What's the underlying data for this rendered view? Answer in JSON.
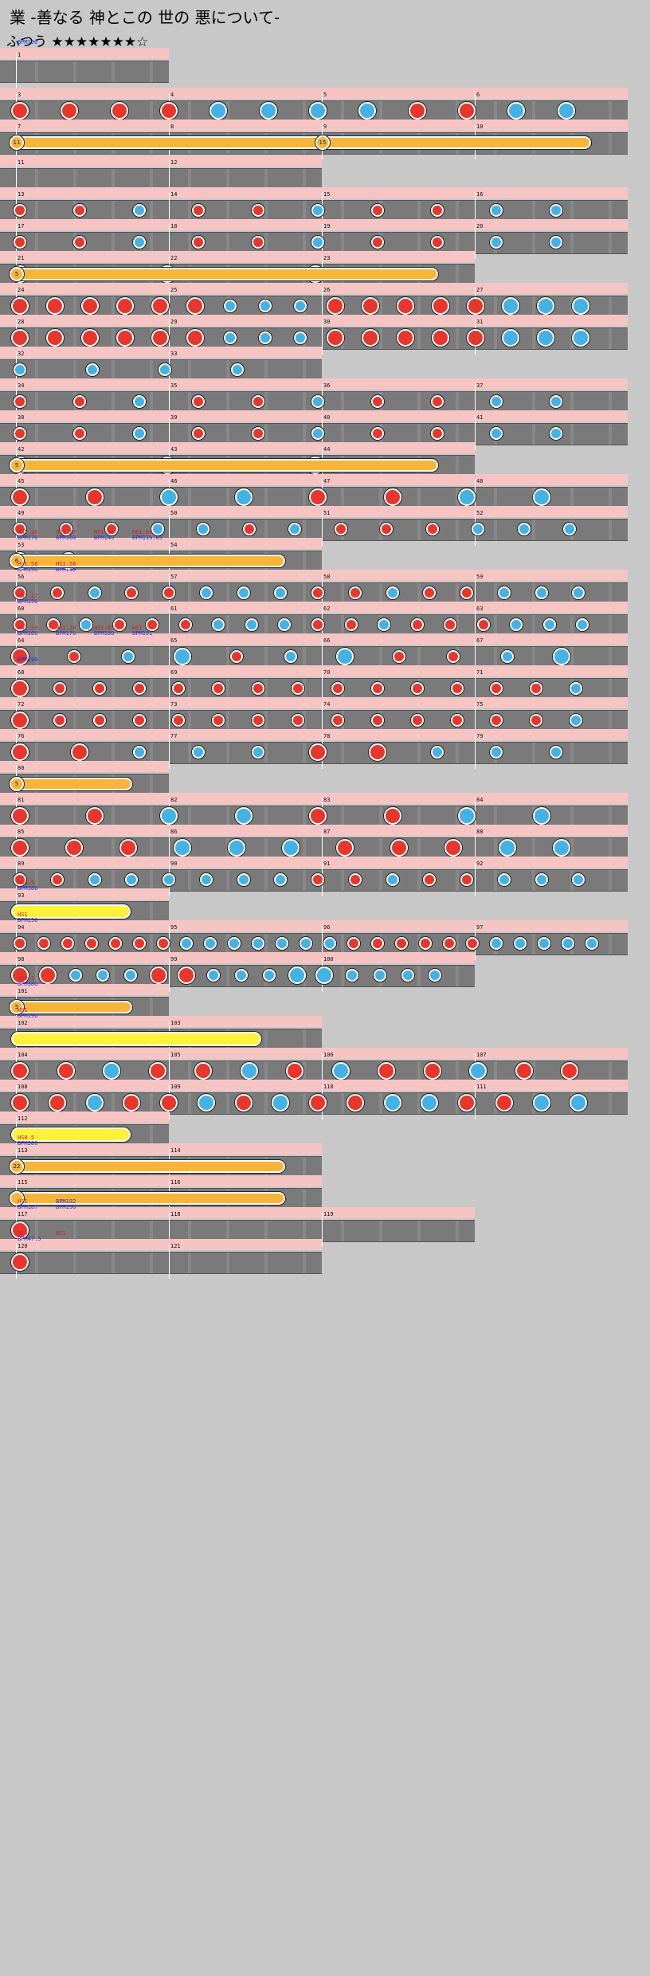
{
  "header": {
    "title": "業 -善なる 神とこの 世の 悪について-",
    "difficulty": "ふつう ★★★★★★★☆"
  },
  "rows": [
    {
      "measures": [
        {
          "num": "1"
        }
      ],
      "tags": [
        {
          "kind": "bpm",
          "text": "BPM190"
        }
      ],
      "notes": []
    },
    {
      "measures": [
        {
          "num": "3"
        },
        {
          "num": "4"
        },
        {
          "num": "5"
        },
        {
          "num": "6"
        }
      ],
      "tags": [],
      "notes": [
        "D",
        "D",
        "D",
        "D",
        "K",
        "K",
        "K",
        "K",
        "D",
        "D",
        "K",
        "K"
      ]
    },
    {
      "measures": [
        {
          "num": "7"
        },
        {
          "num": "8"
        },
        {
          "num": "9"
        },
        {
          "num": "10"
        }
      ],
      "tags": [],
      "rolls": [
        {
          "label": "11"
        },
        {
          "label": "15"
        }
      ],
      "notes": []
    },
    {
      "measures": [
        {
          "num": "11"
        },
        {
          "num": "12"
        }
      ],
      "tags": [],
      "notes": []
    },
    {
      "measures": [
        {
          "num": "13"
        },
        {
          "num": "14"
        },
        {
          "num": "15"
        },
        {
          "num": "16"
        }
      ],
      "tags": [],
      "notes": [
        "d",
        "d",
        "k",
        "d",
        "d",
        "k",
        "d",
        "d",
        "k",
        "k"
      ]
    },
    {
      "measures": [
        {
          "num": "17"
        },
        {
          "num": "18"
        },
        {
          "num": "19"
        },
        {
          "num": "20"
        }
      ],
      "tags": [],
      "notes": [
        "d",
        "d",
        "k",
        "d",
        "d",
        "k",
        "d",
        "d",
        "k",
        "k"
      ]
    },
    {
      "measures": [
        {
          "num": "21"
        },
        {
          "num": "22"
        },
        {
          "num": "23"
        }
      ],
      "tags": [],
      "rolls": [
        {
          "label": "5"
        }
      ],
      "notes": [
        "D",
        "K",
        "K"
      ]
    },
    {
      "measures": [
        {
          "num": "24"
        },
        {
          "num": "25"
        },
        {
          "num": "26"
        },
        {
          "num": "27"
        }
      ],
      "tags": [],
      "notes": [
        "D",
        "D",
        "D",
        "D",
        "D",
        "D",
        "k",
        "k",
        "k",
        "D",
        "D",
        "D",
        "D",
        "D",
        "K",
        "K",
        "K"
      ]
    },
    {
      "measures": [
        {
          "num": "28"
        },
        {
          "num": "29"
        },
        {
          "num": "30"
        },
        {
          "num": "31"
        }
      ],
      "tags": [],
      "notes": [
        "D",
        "D",
        "D",
        "D",
        "D",
        "D",
        "k",
        "k",
        "k",
        "D",
        "D",
        "D",
        "D",
        "D",
        "K",
        "K",
        "K"
      ]
    },
    {
      "measures": [
        {
          "num": "32"
        },
        {
          "num": "33"
        }
      ],
      "tags": [],
      "notes": [
        "k",
        "k",
        "k",
        "k"
      ]
    },
    {
      "measures": [
        {
          "num": "34"
        },
        {
          "num": "35"
        },
        {
          "num": "36"
        },
        {
          "num": "37"
        }
      ],
      "tags": [],
      "notes": [
        "d",
        "d",
        "k",
        "d",
        "d",
        "k",
        "d",
        "d",
        "k",
        "k"
      ]
    },
    {
      "measures": [
        {
          "num": "38"
        },
        {
          "num": "39"
        },
        {
          "num": "40"
        },
        {
          "num": "41"
        }
      ],
      "tags": [],
      "notes": [
        "d",
        "d",
        "k",
        "d",
        "d",
        "k",
        "d",
        "d",
        "k",
        "k"
      ]
    },
    {
      "measures": [
        {
          "num": "42"
        },
        {
          "num": "43"
        },
        {
          "num": "44"
        }
      ],
      "tags": [],
      "rolls": [
        {
          "label": "5"
        }
      ],
      "notes": [
        "D",
        "K",
        "K"
      ]
    },
    {
      "measures": [
        {
          "num": "45"
        },
        {
          "num": "46"
        },
        {
          "num": "47"
        },
        {
          "num": "48"
        }
      ],
      "tags": [],
      "notes": [
        "D",
        "D",
        "K",
        "K",
        "D",
        "D",
        "K",
        "K"
      ]
    },
    {
      "measures": [
        {
          "num": "49"
        },
        {
          "num": "50"
        },
        {
          "num": "51"
        },
        {
          "num": "52"
        }
      ],
      "tags": [],
      "notes": [
        "d",
        "d",
        "d",
        "k",
        "k",
        "d",
        "k",
        "d",
        "d",
        "d",
        "k",
        "k",
        "k"
      ]
    },
    {
      "measures": [
        {
          "num": "53"
        },
        {
          "num": "54"
        }
      ],
      "tags": [
        {
          "kind": "hs",
          "text": "HS1.18"
        },
        {
          "kind": "bpm",
          "text": "BPM170"
        },
        {
          "kind": "hs",
          "text": "HS1.27"
        },
        {
          "kind": "bpm",
          "text": "BPM160"
        },
        {
          "kind": "hs",
          "text": "HS1.36"
        },
        {
          "kind": "bpm",
          "text": "BPM140"
        },
        {
          "kind": "hs",
          "text": "HS1.98"
        },
        {
          "kind": "bpm",
          "text": "BPM119.85"
        }
      ],
      "rolls": [
        {
          "label": "6"
        }
      ],
      "notes": [
        "D",
        "D",
        "k",
        "k",
        "k",
        "k"
      ]
    },
    {
      "measures": [
        {
          "num": "56"
        },
        {
          "num": "57"
        },
        {
          "num": "58"
        },
        {
          "num": "59"
        }
      ],
      "tags": [
        {
          "kind": "hs",
          "text": "HS1.58"
        },
        {
          "kind": "bpm",
          "text": "BPM150"
        },
        {
          "kind": "hs",
          "text": "HS1.58"
        },
        {
          "kind": "bpm",
          "text": "BPM140"
        }
      ],
      "notes": [
        "d",
        "d",
        "k",
        "d",
        "d",
        "k",
        "k",
        "k",
        "d",
        "d",
        "k",
        "d",
        "d",
        "k",
        "k",
        "k"
      ]
    },
    {
      "measures": [
        {
          "num": "60"
        },
        {
          "num": "61"
        },
        {
          "num": "62"
        },
        {
          "num": "63"
        }
      ],
      "tags": [
        {
          "kind": "hs",
          "text": "HS1.27"
        },
        {
          "kind": "bpm",
          "text": "BPM150"
        }
      ],
      "notes": [
        "d",
        "d",
        "k",
        "d",
        "d",
        "d",
        "k",
        "k",
        "k",
        "d",
        "d",
        "k",
        "d",
        "d",
        "d",
        "k",
        "k",
        "k"
      ]
    },
    {
      "measures": [
        {
          "num": "64"
        },
        {
          "num": "65"
        },
        {
          "num": "66"
        },
        {
          "num": "67"
        }
      ],
      "tags": [
        {
          "kind": "hs",
          "text": "HS1.19"
        },
        {
          "kind": "bpm",
          "text": "BPM160"
        },
        {
          "kind": "hs",
          "text": "HS1.18"
        },
        {
          "kind": "bpm",
          "text": "BPM170"
        },
        {
          "kind": "hs",
          "text": "HS1.05"
        },
        {
          "kind": "bpm",
          "text": "BPM180"
        },
        {
          "kind": "hs",
          "text": "HS1"
        },
        {
          "kind": "bpm",
          "text": "BPM191"
        }
      ],
      "notes": [
        "D",
        "d",
        "k",
        "K",
        "d",
        "k",
        "K",
        "d",
        "d",
        "k",
        "K"
      ]
    },
    {
      "measures": [
        {
          "num": "68"
        },
        {
          "num": "69"
        },
        {
          "num": "70"
        },
        {
          "num": "71"
        }
      ],
      "tags": [
        {
          "kind": "bpm",
          "text": "BPM190"
        }
      ],
      "notes": [
        "D",
        "d",
        "d",
        "d",
        "d",
        "d",
        "d",
        "d",
        "d",
        "d",
        "d",
        "d",
        "d",
        "d",
        "k"
      ]
    },
    {
      "measures": [
        {
          "num": "72"
        },
        {
          "num": "73"
        },
        {
          "num": "74"
        },
        {
          "num": "75"
        }
      ],
      "tags": [],
      "notes": [
        "D",
        "d",
        "d",
        "d",
        "d",
        "d",
        "d",
        "d",
        "d",
        "d",
        "d",
        "d",
        "d",
        "d",
        "k"
      ]
    },
    {
      "measures": [
        {
          "num": "76"
        },
        {
          "num": "77"
        },
        {
          "num": "78"
        },
        {
          "num": "79"
        }
      ],
      "tags": [],
      "notes": [
        "D",
        "D",
        "k",
        "k",
        "k",
        "D",
        "D",
        "k",
        "k",
        "k"
      ]
    },
    {
      "measures": [
        {
          "num": "80"
        }
      ],
      "tags": [],
      "rolls": [
        {
          "label": "5"
        }
      ],
      "notes": []
    },
    {
      "measures": [
        {
          "num": "81"
        },
        {
          "num": "82"
        },
        {
          "num": "83"
        },
        {
          "num": "84"
        }
      ],
      "tags": [],
      "notes": [
        "D",
        "D",
        "K",
        "K",
        "D",
        "D",
        "K",
        "K"
      ]
    },
    {
      "measures": [
        {
          "num": "85"
        },
        {
          "num": "86"
        },
        {
          "num": "87"
        },
        {
          "num": "88"
        }
      ],
      "tags": [],
      "notes": [
        "D",
        "D",
        "D",
        "K",
        "K",
        "K",
        "D",
        "D",
        "D",
        "K",
        "K"
      ]
    },
    {
      "measures": [
        {
          "num": "89"
        },
        {
          "num": "90"
        },
        {
          "num": "91"
        },
        {
          "num": "92"
        }
      ],
      "tags": [],
      "notes": [
        "d",
        "d",
        "k",
        "k",
        "k",
        "k",
        "k",
        "k",
        "d",
        "d",
        "k",
        "d",
        "d",
        "k",
        "k",
        "k"
      ]
    },
    {
      "measures": [
        {
          "num": "93"
        }
      ],
      "tags": [
        {
          "kind": "hs",
          "text": "HS0.5"
        },
        {
          "kind": "bpm",
          "text": "BPM380"
        }
      ],
      "balloons": [
        {
          "label": ""
        }
      ],
      "notes": []
    },
    {
      "measures": [
        {
          "num": "94"
        },
        {
          "num": "95"
        },
        {
          "num": "96"
        },
        {
          "num": "97"
        }
      ],
      "tags": [
        {
          "kind": "hs",
          "text": "HS1"
        },
        {
          "kind": "bpm",
          "text": "BPM190"
        }
      ],
      "notes": [
        "d",
        "d",
        "d",
        "d",
        "d",
        "d",
        "d",
        "k",
        "k",
        "k",
        "k",
        "k",
        "k",
        "k",
        "d",
        "d",
        "d",
        "d",
        "d",
        "d",
        "k",
        "k",
        "k",
        "k",
        "k"
      ]
    },
    {
      "measures": [
        {
          "num": "98"
        },
        {
          "num": "99"
        },
        {
          "num": "100"
        }
      ],
      "tags": [],
      "notes": [
        "D",
        "D",
        "k",
        "k",
        "k",
        "D",
        "D",
        "k",
        "k",
        "k",
        "K",
        "K",
        "k",
        "k",
        "k",
        "k"
      ]
    },
    {
      "measures": [
        {
          "num": "101"
        }
      ],
      "tags": [
        {
          "kind": "hs",
          "text": "HS0.5"
        },
        {
          "kind": "bpm",
          "text": "BPM380"
        }
      ],
      "rolls": [
        {
          "label": "5"
        }
      ],
      "notes": []
    },
    {
      "measures": [
        {
          "num": "102"
        },
        {
          "num": "103"
        }
      ],
      "tags": [
        {
          "kind": "hs",
          "text": "HS1"
        },
        {
          "kind": "bpm",
          "text": "BPM190"
        }
      ],
      "balloons": [
        {
          "label": ""
        }
      ],
      "notes": []
    },
    {
      "measures": [
        {
          "num": "104"
        },
        {
          "num": "105"
        },
        {
          "num": "106"
        },
        {
          "num": "107"
        }
      ],
      "tags": [],
      "notes": [
        "D",
        "D",
        "K",
        "D",
        "D",
        "K",
        "D",
        "K",
        "D",
        "D",
        "K",
        "D",
        "D"
      ]
    },
    {
      "measures": [
        {
          "num": "108"
        },
        {
          "num": "109"
        },
        {
          "num": "110"
        },
        {
          "num": "111"
        }
      ],
      "tags": [],
      "notes": [
        "D",
        "D",
        "K",
        "D",
        "D",
        "K",
        "D",
        "K",
        "D",
        "D",
        "K",
        "K",
        "D",
        "D",
        "K",
        "K"
      ]
    },
    {
      "measures": [
        {
          "num": "112"
        }
      ],
      "tags": [],
      "balloons": [
        {
          "label": ""
        }
      ],
      "notes": []
    },
    {
      "measures": [
        {
          "num": "113"
        },
        {
          "num": "114"
        }
      ],
      "tags": [
        {
          "kind": "hs",
          "text": "HS0.5"
        },
        {
          "kind": "bpm",
          "text": "BPM380"
        }
      ],
      "rolls": [
        {
          "label": "22"
        }
      ],
      "notes": []
    },
    {
      "measures": [
        {
          "num": "115"
        },
        {
          "num": "116"
        }
      ],
      "tags": [],
      "rolls": [
        {
          "label": ""
        }
      ],
      "notes": []
    },
    {
      "measures": [
        {
          "num": "117"
        },
        {
          "num": "118"
        },
        {
          "num": "119"
        }
      ],
      "tags": [
        {
          "kind": "hs",
          "text": "HS1"
        },
        {
          "kind": "bpm",
          "text": "BPM187"
        },
        {
          "kind": "bpm",
          "text": "BPM192"
        },
        {
          "kind": "bpm",
          "text": "BPM190"
        }
      ],
      "notes": [
        "D"
      ]
    },
    {
      "measures": [
        {
          "num": "120"
        },
        {
          "num": "121"
        }
      ],
      "tags": [
        {
          "kind": "hs",
          "text": "HS4"
        },
        {
          "kind": "bpm",
          "text": "BPM47.5"
        },
        {
          "kind": "hs",
          "text": "HS1"
        }
      ],
      "notes": [
        "D"
      ]
    }
  ]
}
